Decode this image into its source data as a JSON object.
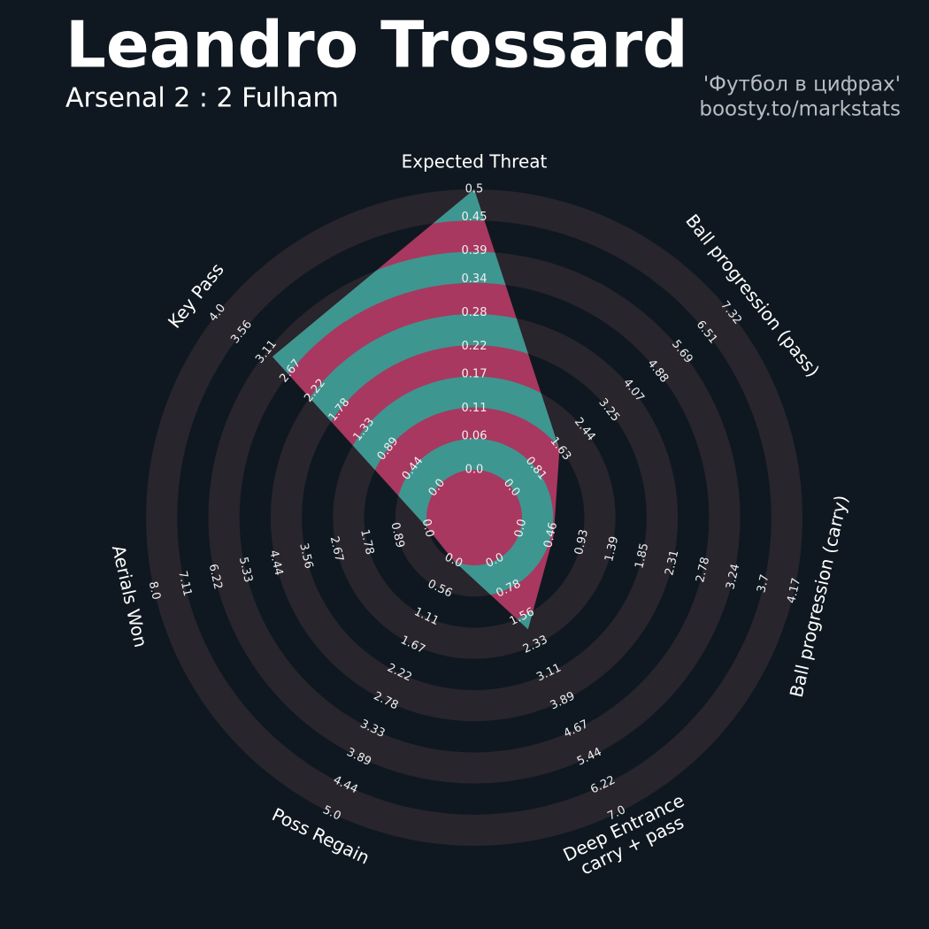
{
  "chart_data": {
    "type": "radar",
    "title": "Leandro Trossard",
    "subtitle": "Arsenal 2 : 2 Fulham",
    "credits": [
      "'Футбол в цифрах'",
      "boosty.to/markstats"
    ],
    "color": "#a8385f",
    "color_alt": "#3e9690",
    "ring_color": "#28252c",
    "axes": [
      {
        "label": "Expected Threat",
        "lim": [
          0,
          0.5
        ],
        "ticks": [
          {
            "value": 0,
            "label": "0.0"
          },
          0.06,
          0.11,
          0.17,
          0.22,
          0.28,
          0.34,
          0.39,
          0.45,
          0.5
        ]
      },
      {
        "label": "Ball progression (pass)",
        "lim": [
          0,
          7.32
        ],
        "ticks": [
          {
            "value": 0,
            "label": "0.0"
          },
          0.81,
          1.63,
          2.44,
          3.25,
          4.07,
          4.88,
          5.69,
          6.51,
          7.32
        ]
      },
      {
        "label": "Ball progression (carry)",
        "lim": [
          0,
          4.17
        ],
        "ticks": [
          {
            "value": 0,
            "label": "0.0"
          },
          0.46,
          0.93,
          1.39,
          1.85,
          2.31,
          2.78,
          3.24,
          3.7,
          4.17
        ]
      },
      {
        "label": "Deep Entrance\ncarry + pass",
        "lim": [
          0,
          7
        ],
        "ticks": [
          {
            "value": 0,
            "label": "0.0"
          },
          0.78,
          1.56,
          2.33,
          3.11,
          3.89,
          4.67,
          5.44,
          6.22,
          {
            "value": 7,
            "label": "7.0"
          }
        ]
      },
      {
        "label": "Poss Regain",
        "lim": [
          0,
          5
        ],
        "ticks": [
          {
            "value": 0,
            "label": "0.0"
          },
          0.56,
          1.11,
          1.67,
          2.22,
          2.78,
          3.33,
          3.89,
          4.44,
          {
            "value": 5,
            "label": "5.0"
          }
        ]
      },
      {
        "label": "Aerials Won",
        "lim": [
          0,
          8
        ],
        "ticks": [
          {
            "value": 0,
            "label": "0.0"
          },
          0.89,
          1.78,
          2.67,
          3.56,
          4.44,
          5.33,
          6.22,
          7.11,
          {
            "value": 8,
            "label": "8.0"
          }
        ]
      },
      {
        "label": "Key Pass",
        "lim": [
          0,
          4
        ],
        "ticks": [
          {
            "value": 0,
            "label": "0.0"
          },
          0.44,
          0.89,
          1.33,
          1.78,
          2.22,
          2.67,
          3.11,
          3.56,
          {
            "value": 4,
            "label": "4.0"
          }
        ]
      }
    ],
    "values": [
      0.5,
      1.6,
      0.5,
      1.9,
      0,
      0,
      3.0
    ]
  }
}
